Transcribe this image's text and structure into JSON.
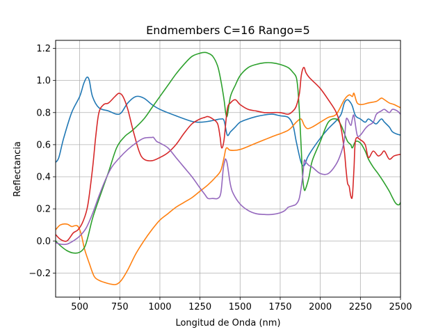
{
  "chart_data": {
    "type": "line",
    "title": "Endmembers C=16 Rango=5",
    "xlabel": "Longitud de Onda (nm)",
    "ylabel": "Reflectancia",
    "xlim": [
      350,
      2500
    ],
    "ylim": [
      -0.35,
      1.25
    ],
    "xticks": [
      500,
      750,
      1000,
      1250,
      1500,
      1750,
      2000,
      2250,
      2500
    ],
    "yticks": [
      -0.2,
      0.0,
      0.2,
      0.4,
      0.6,
      0.8,
      1.0,
      1.2
    ],
    "xtick_labels": [
      "500",
      "750",
      "1000",
      "1250",
      "1500",
      "1750",
      "2000",
      "2250",
      "2500"
    ],
    "ytick_labels": [
      "−0.2",
      "0.0",
      "0.2",
      "0.4",
      "0.6",
      "0.8",
      "1.0",
      "1.2"
    ],
    "grid": true,
    "legend": "none",
    "series": [
      {
        "color": "#1f77b4",
        "x": [
          350,
          370,
          400,
          450,
          500,
          525,
          545,
          560,
          580,
          620,
          680,
          730,
          760,
          800,
          850,
          900,
          950,
          1000,
          1100,
          1200,
          1250,
          1300,
          1350,
          1380,
          1400,
          1420,
          1440,
          1470,
          1500,
          1550,
          1600,
          1650,
          1700,
          1750,
          1800,
          1830,
          1850,
          1880,
          1900,
          1920,
          1950,
          2000,
          2050,
          2100,
          2130,
          2150,
          2170,
          2190,
          2200,
          2220,
          2250,
          2280,
          2300,
          2330,
          2350,
          2380,
          2400,
          2430,
          2450,
          2480,
          2500
        ],
        "y": [
          0.49,
          0.52,
          0.64,
          0.8,
          0.9,
          0.98,
          1.02,
          1.0,
          0.9,
          0.83,
          0.81,
          0.79,
          0.8,
          0.86,
          0.9,
          0.89,
          0.85,
          0.82,
          0.78,
          0.745,
          0.74,
          0.745,
          0.755,
          0.76,
          0.75,
          0.66,
          0.68,
          0.71,
          0.74,
          0.76,
          0.775,
          0.785,
          0.79,
          0.78,
          0.77,
          0.72,
          0.62,
          0.49,
          0.47,
          0.52,
          0.57,
          0.64,
          0.7,
          0.75,
          0.79,
          0.86,
          0.88,
          0.86,
          0.84,
          0.78,
          0.76,
          0.74,
          0.76,
          0.74,
          0.73,
          0.76,
          0.74,
          0.71,
          0.68,
          0.665,
          0.66
        ]
      },
      {
        "color": "#ff7f0e",
        "x": [
          350,
          380,
          420,
          450,
          470,
          490,
          510,
          530,
          560,
          590,
          620,
          660,
          700,
          730,
          760,
          800,
          850,
          900,
          950,
          1000,
          1050,
          1100,
          1150,
          1200,
          1250,
          1300,
          1350,
          1380,
          1400,
          1410,
          1420,
          1440,
          1500,
          1600,
          1700,
          1800,
          1850,
          1880,
          1900,
          1920,
          1950,
          2000,
          2050,
          2100,
          2150,
          2180,
          2200,
          2210,
          2230,
          2260,
          2300,
          2350,
          2380,
          2400,
          2430,
          2460,
          2500
        ],
        "y": [
          0.07,
          0.1,
          0.105,
          0.09,
          0.095,
          0.09,
          0.04,
          -0.05,
          -0.14,
          -0.22,
          -0.245,
          -0.26,
          -0.27,
          -0.27,
          -0.245,
          -0.18,
          -0.08,
          0.0,
          0.07,
          0.13,
          0.17,
          0.21,
          0.24,
          0.27,
          0.31,
          0.35,
          0.4,
          0.44,
          0.52,
          0.57,
          0.58,
          0.565,
          0.57,
          0.61,
          0.65,
          0.69,
          0.74,
          0.76,
          0.72,
          0.7,
          0.71,
          0.74,
          0.77,
          0.79,
          0.88,
          0.91,
          0.9,
          0.92,
          0.86,
          0.85,
          0.86,
          0.87,
          0.89,
          0.88,
          0.86,
          0.85,
          0.83
        ]
      },
      {
        "color": "#2ca02c",
        "x": [
          350,
          380,
          420,
          460,
          500,
          530,
          550,
          580,
          620,
          680,
          730,
          780,
          830,
          900,
          950,
          1000,
          1050,
          1100,
          1150,
          1200,
          1250,
          1280,
          1300,
          1330,
          1360,
          1380,
          1400,
          1410,
          1420,
          1440,
          1470,
          1500,
          1550,
          1600,
          1650,
          1700,
          1750,
          1800,
          1830,
          1850,
          1860,
          1870,
          1880,
          1890,
          1900,
          1910,
          1930,
          1950,
          2000,
          2050,
          2100,
          2130,
          2150,
          2170,
          2190,
          2200,
          2220,
          2250,
          2280,
          2300,
          2330,
          2360,
          2400,
          2430,
          2450,
          2470,
          2490,
          2500
        ],
        "y": [
          0.0,
          -0.03,
          -0.06,
          -0.075,
          -0.07,
          -0.04,
          0.02,
          0.14,
          0.26,
          0.43,
          0.58,
          0.65,
          0.69,
          0.76,
          0.83,
          0.9,
          0.97,
          1.04,
          1.1,
          1.15,
          1.17,
          1.175,
          1.17,
          1.15,
          1.09,
          1.0,
          0.88,
          0.8,
          0.78,
          0.9,
          0.97,
          1.03,
          1.08,
          1.1,
          1.11,
          1.11,
          1.1,
          1.08,
          1.05,
          1.02,
          0.95,
          0.8,
          0.6,
          0.4,
          0.32,
          0.33,
          0.4,
          0.5,
          0.62,
          0.74,
          0.76,
          0.72,
          0.67,
          0.62,
          0.6,
          0.58,
          0.62,
          0.61,
          0.56,
          0.51,
          0.46,
          0.42,
          0.36,
          0.31,
          0.27,
          0.235,
          0.225,
          0.24
        ]
      },
      {
        "color": "#d62728",
        "x": [
          350,
          380,
          420,
          460,
          490,
          520,
          550,
          580,
          600,
          620,
          650,
          680,
          720,
          745,
          770,
          800,
          830,
          870,
          900,
          950,
          1000,
          1050,
          1100,
          1150,
          1200,
          1250,
          1280,
          1300,
          1330,
          1360,
          1375,
          1385,
          1400,
          1420,
          1440,
          1470,
          1500,
          1550,
          1600,
          1650,
          1700,
          1750,
          1800,
          1830,
          1850,
          1870,
          1880,
          1890,
          1900,
          1910,
          1930,
          1950,
          2000,
          2050,
          2100,
          2130,
          2150,
          2160,
          2170,
          2180,
          2190,
          2200,
          2210,
          2220,
          2250,
          2280,
          2300,
          2330,
          2360,
          2380,
          2400,
          2430,
          2460,
          2500
        ],
        "y": [
          0.04,
          0.01,
          0.0,
          0.05,
          0.07,
          0.12,
          0.22,
          0.45,
          0.65,
          0.8,
          0.85,
          0.86,
          0.9,
          0.92,
          0.9,
          0.82,
          0.7,
          0.56,
          0.51,
          0.5,
          0.52,
          0.55,
          0.6,
          0.67,
          0.73,
          0.76,
          0.77,
          0.775,
          0.76,
          0.73,
          0.65,
          0.58,
          0.63,
          0.82,
          0.86,
          0.88,
          0.85,
          0.82,
          0.81,
          0.8,
          0.8,
          0.8,
          0.79,
          0.81,
          0.84,
          0.92,
          1.02,
          1.07,
          1.08,
          1.05,
          1.02,
          1.0,
          0.95,
          0.88,
          0.8,
          0.7,
          0.56,
          0.45,
          0.36,
          0.34,
          0.28,
          0.28,
          0.45,
          0.63,
          0.63,
          0.6,
          0.52,
          0.56,
          0.53,
          0.54,
          0.56,
          0.51,
          0.53,
          0.54
        ]
      },
      {
        "color": "#9467bd",
        "x": [
          350,
          380,
          420,
          460,
          500,
          540,
          580,
          620,
          660,
          700,
          750,
          800,
          850,
          900,
          950,
          960,
          980,
          1000,
          1050,
          1100,
          1150,
          1200,
          1250,
          1280,
          1300,
          1330,
          1360,
          1380,
          1395,
          1405,
          1410,
          1420,
          1440,
          1460,
          1500,
          1550,
          1600,
          1650,
          1700,
          1750,
          1780,
          1800,
          1830,
          1850,
          1870,
          1890,
          1900,
          1910,
          1930,
          1950,
          2000,
          2050,
          2100,
          2130,
          2150,
          2160,
          2170,
          2190,
          2200,
          2210,
          2230,
          2250,
          2280,
          2300,
          2330,
          2350,
          2380,
          2400,
          2430,
          2450,
          2480,
          2500
        ],
        "y": [
          -0.01,
          -0.02,
          -0.02,
          0.0,
          0.03,
          0.08,
          0.17,
          0.28,
          0.38,
          0.46,
          0.52,
          0.57,
          0.61,
          0.64,
          0.645,
          0.645,
          0.62,
          0.61,
          0.58,
          0.52,
          0.46,
          0.4,
          0.33,
          0.29,
          0.265,
          0.265,
          0.265,
          0.3,
          0.45,
          0.5,
          0.51,
          0.48,
          0.35,
          0.29,
          0.23,
          0.19,
          0.17,
          0.165,
          0.165,
          0.175,
          0.19,
          0.21,
          0.22,
          0.23,
          0.27,
          0.4,
          0.5,
          0.49,
          0.47,
          0.46,
          0.42,
          0.42,
          0.48,
          0.55,
          0.63,
          0.75,
          0.76,
          0.72,
          0.76,
          0.78,
          0.66,
          0.66,
          0.7,
          0.72,
          0.74,
          0.79,
          0.81,
          0.82,
          0.8,
          0.82,
          0.81,
          0.79
        ]
      }
    ]
  }
}
